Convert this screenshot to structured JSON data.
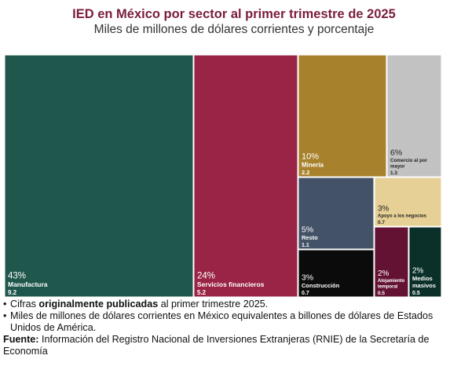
{
  "title": "IED en México por sector al primer trimestre de 2025",
  "subtitle": "Miles de millones de dólares corrientes y porcentaje",
  "chart_data": {
    "type": "treemap",
    "title": "IED en México por sector al primer trimestre de 2025",
    "subtitle": "Miles de millones de dólares corrientes y porcentaje",
    "items": [
      {
        "name": "Manufactura",
        "pct": "43%",
        "value": "9.2",
        "color": "#1f574d"
      },
      {
        "name": "Servicios financieros",
        "pct": "24%",
        "value": "5.2",
        "color": "#992445"
      },
      {
        "name": "Minería",
        "pct": "10%",
        "value": "2.2",
        "color": "#a8812c"
      },
      {
        "name": "Comercio al por mayor",
        "pct": "6%",
        "value": "1.3",
        "color": "#c2c2c2"
      },
      {
        "name": "Resto",
        "pct": "5%",
        "value": "1.1",
        "color": "#435267"
      },
      {
        "name": "Apoyo a los negocios",
        "pct": "3%",
        "value": "0.7",
        "color": "#e6d095"
      },
      {
        "name": "Construcción",
        "pct": "3%",
        "value": "0.7",
        "color": "#0b0b0b"
      },
      {
        "name": "Alojamiento temporal",
        "pct": "2%",
        "value": "0.5",
        "color": "#641233"
      },
      {
        "name": "Medios masivos",
        "pct": "2%",
        "value": "0.5",
        "color": "#0b3029"
      }
    ]
  },
  "notes": {
    "bullet_glyph": "•",
    "note1_pre": "Cifras ",
    "note1_bold": "originalmente publicadas",
    "note1_post": " al primer trimestre 2025.",
    "note2": "Miles de millones de dólares corrientes en México equivalentes a billones de dólares de Estados Unidos de América.",
    "source_label": "Fuente:",
    "source_text": " Información del Registro Nacional de Inversiones Extranjeras (RNIE) de la Secretaría de Economía"
  }
}
